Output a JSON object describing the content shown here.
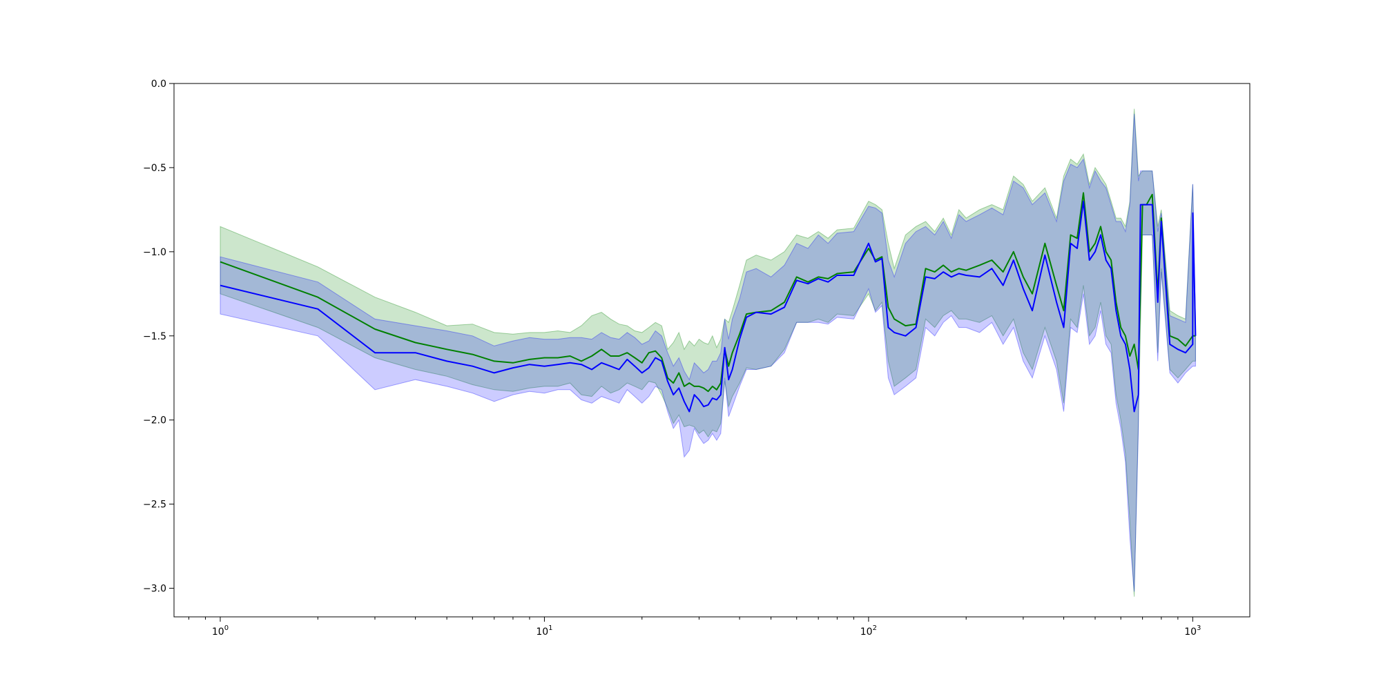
{
  "chart_data": {
    "type": "line",
    "title": "",
    "xlabel": "",
    "ylabel": "",
    "x_scale": "log",
    "xlim": [
      0.72,
      1500
    ],
    "ylim": [
      -3.17,
      0.0
    ],
    "x_ticks": [
      {
        "value": 1,
        "base": "10",
        "exp": "0"
      },
      {
        "value": 10,
        "base": "10",
        "exp": "1"
      },
      {
        "value": 100,
        "base": "10",
        "exp": "2"
      },
      {
        "value": 1000,
        "base": "10",
        "exp": "3"
      }
    ],
    "y_ticks": [
      {
        "value": 0.0,
        "label": "0.0"
      },
      {
        "value": -0.5,
        "label": "−0.5"
      },
      {
        "value": -1.0,
        "label": "−1.0"
      },
      {
        "value": -1.5,
        "label": "−1.5"
      },
      {
        "value": -2.0,
        "label": "−2.0"
      },
      {
        "value": -2.5,
        "label": "−2.5"
      },
      {
        "value": -3.0,
        "label": "−3.0"
      }
    ],
    "grid": false,
    "legend": "none",
    "series": [
      {
        "color": "#008000",
        "band_color": "#008000",
        "x": [
          1,
          2,
          3,
          4,
          5,
          6,
          7,
          8,
          9,
          10,
          11,
          12,
          13,
          14,
          15,
          16,
          17,
          18,
          19,
          20,
          21,
          22,
          23,
          24,
          25,
          26,
          27,
          28,
          29,
          30,
          31,
          32,
          33,
          34,
          35,
          36,
          37,
          38,
          40,
          42,
          45,
          50,
          55,
          60,
          65,
          70,
          75,
          80,
          90,
          100,
          105,
          110,
          115,
          120,
          130,
          140,
          150,
          160,
          170,
          180,
          190,
          200,
          220,
          240,
          260,
          280,
          300,
          320,
          350,
          380,
          400,
          420,
          440,
          460,
          480,
          500,
          520,
          540,
          560,
          580,
          600,
          620,
          640,
          660,
          680,
          700,
          720,
          750,
          780,
          800,
          850,
          900,
          950,
          1000,
          1020
        ],
        "y": [
          -1.06,
          -1.27,
          -1.46,
          -1.54,
          -1.58,
          -1.61,
          -1.65,
          -1.66,
          -1.64,
          -1.63,
          -1.63,
          -1.62,
          -1.65,
          -1.62,
          -1.58,
          -1.62,
          -1.62,
          -1.6,
          -1.63,
          -1.66,
          -1.6,
          -1.59,
          -1.63,
          -1.75,
          -1.78,
          -1.72,
          -1.8,
          -1.78,
          -1.8,
          -1.8,
          -1.81,
          -1.83,
          -1.8,
          -1.82,
          -1.78,
          -1.58,
          -1.68,
          -1.6,
          -1.49,
          -1.37,
          -1.36,
          -1.35,
          -1.3,
          -1.15,
          -1.18,
          -1.15,
          -1.16,
          -1.13,
          -1.12,
          -0.98,
          -1.05,
          -1.03,
          -1.33,
          -1.4,
          -1.44,
          -1.43,
          -1.1,
          -1.12,
          -1.08,
          -1.12,
          -1.1,
          -1.11,
          -1.08,
          -1.05,
          -1.12,
          -1.0,
          -1.15,
          -1.25,
          -0.95,
          -1.2,
          -1.35,
          -0.9,
          -0.92,
          -0.65,
          -1.0,
          -0.95,
          -0.85,
          -1.0,
          -1.05,
          -1.3,
          -1.45,
          -1.5,
          -1.62,
          -1.55,
          -1.7,
          -0.72,
          -0.72,
          -0.66,
          -1.25,
          -0.8,
          -1.5,
          -1.52,
          -1.56,
          -1.5,
          -1.5
        ],
        "upper": [
          -0.85,
          -1.09,
          -1.27,
          -1.36,
          -1.44,
          -1.43,
          -1.48,
          -1.49,
          -1.48,
          -1.48,
          -1.47,
          -1.48,
          -1.44,
          -1.38,
          -1.36,
          -1.4,
          -1.43,
          -1.44,
          -1.47,
          -1.48,
          -1.45,
          -1.42,
          -1.44,
          -1.58,
          -1.54,
          -1.48,
          -1.58,
          -1.53,
          -1.56,
          -1.52,
          -1.54,
          -1.55,
          -1.5,
          -1.57,
          -1.52,
          -1.4,
          -1.42,
          -1.35,
          -1.2,
          -1.05,
          -1.02,
          -1.05,
          -1.0,
          -0.9,
          -0.92,
          -0.88,
          -0.92,
          -0.87,
          -0.86,
          -0.7,
          -0.72,
          -0.75,
          -0.95,
          -1.1,
          -0.9,
          -0.85,
          -0.82,
          -0.88,
          -0.8,
          -0.9,
          -0.75,
          -0.8,
          -0.75,
          -0.72,
          -0.75,
          -0.55,
          -0.6,
          -0.7,
          -0.62,
          -0.8,
          -0.55,
          -0.45,
          -0.48,
          -0.42,
          -0.6,
          -0.5,
          -0.55,
          -0.6,
          -0.7,
          -0.8,
          -0.8,
          -0.85,
          -0.7,
          -0.15,
          -0.55,
          -0.52,
          -0.52,
          -0.52,
          -0.85,
          -0.75,
          -1.35,
          -1.38,
          -1.4,
          -0.6,
          -1.4
        ],
        "lower": [
          -1.25,
          -1.45,
          -1.63,
          -1.7,
          -1.74,
          -1.79,
          -1.82,
          -1.83,
          -1.81,
          -1.8,
          -1.8,
          -1.78,
          -1.85,
          -1.86,
          -1.8,
          -1.84,
          -1.82,
          -1.78,
          -1.8,
          -1.82,
          -1.77,
          -1.78,
          -1.85,
          -1.93,
          -2.02,
          -1.97,
          -2.04,
          -2.03,
          -2.04,
          -2.08,
          -2.06,
          -2.1,
          -2.06,
          -2.07,
          -2.02,
          -1.77,
          -1.92,
          -1.86,
          -1.78,
          -1.69,
          -1.7,
          -1.68,
          -1.58,
          -1.42,
          -1.42,
          -1.4,
          -1.42,
          -1.37,
          -1.38,
          -1.25,
          -1.35,
          -1.3,
          -1.65,
          -1.8,
          -1.75,
          -1.7,
          -1.4,
          -1.45,
          -1.38,
          -1.35,
          -1.4,
          -1.4,
          -1.42,
          -1.38,
          -1.5,
          -1.4,
          -1.6,
          -1.7,
          -1.45,
          -1.65,
          -1.9,
          -1.4,
          -1.45,
          -1.2,
          -1.5,
          -1.45,
          -1.3,
          -1.5,
          -1.55,
          -1.85,
          -2.0,
          -2.2,
          -2.6,
          -3.05,
          -2.0,
          -0.9,
          -0.9,
          -0.9,
          -1.6,
          -1.1,
          -1.7,
          -1.75,
          -1.7,
          -1.65,
          -1.65
        ]
      },
      {
        "color": "#0000ff",
        "band_color": "#0000ff",
        "x": [
          1,
          2,
          3,
          4,
          5,
          6,
          7,
          8,
          9,
          10,
          11,
          12,
          13,
          14,
          15,
          16,
          17,
          18,
          19,
          20,
          21,
          22,
          23,
          24,
          25,
          26,
          27,
          28,
          29,
          30,
          31,
          32,
          33,
          34,
          35,
          36,
          37,
          38,
          40,
          42,
          45,
          50,
          55,
          60,
          65,
          70,
          75,
          80,
          90,
          100,
          105,
          110,
          115,
          120,
          130,
          140,
          150,
          160,
          170,
          180,
          190,
          200,
          220,
          240,
          260,
          280,
          300,
          320,
          350,
          380,
          400,
          420,
          440,
          460,
          480,
          500,
          520,
          540,
          560,
          580,
          600,
          620,
          640,
          660,
          680,
          690,
          720,
          750,
          780,
          800,
          850,
          900,
          950,
          1000,
          1001,
          1020
        ],
        "y": [
          -1.2,
          -1.34,
          -1.6,
          -1.6,
          -1.65,
          -1.68,
          -1.72,
          -1.69,
          -1.67,
          -1.68,
          -1.67,
          -1.66,
          -1.67,
          -1.7,
          -1.66,
          -1.68,
          -1.7,
          -1.64,
          -1.68,
          -1.72,
          -1.69,
          -1.63,
          -1.65,
          -1.77,
          -1.85,
          -1.81,
          -1.89,
          -1.95,
          -1.85,
          -1.88,
          -1.92,
          -1.91,
          -1.87,
          -1.88,
          -1.85,
          -1.57,
          -1.76,
          -1.7,
          -1.52,
          -1.39,
          -1.36,
          -1.37,
          -1.33,
          -1.17,
          -1.19,
          -1.16,
          -1.18,
          -1.14,
          -1.14,
          -0.95,
          -1.06,
          -1.04,
          -1.45,
          -1.48,
          -1.5,
          -1.45,
          -1.15,
          -1.16,
          -1.12,
          -1.15,
          -1.13,
          -1.14,
          -1.15,
          -1.1,
          -1.2,
          -1.05,
          -1.22,
          -1.35,
          -1.02,
          -1.3,
          -1.45,
          -0.95,
          -0.98,
          -0.7,
          -1.05,
          -1.0,
          -0.9,
          -1.05,
          -1.1,
          -1.35,
          -1.5,
          -1.55,
          -1.7,
          -1.95,
          -1.85,
          -0.72,
          -0.72,
          -0.72,
          -1.3,
          -0.82,
          -1.55,
          -1.58,
          -1.6,
          -1.55,
          -0.77,
          -1.5
        ],
        "upper": [
          -1.03,
          -1.18,
          -1.4,
          -1.44,
          -1.47,
          -1.5,
          -1.56,
          -1.53,
          -1.51,
          -1.52,
          -1.52,
          -1.51,
          -1.51,
          -1.52,
          -1.48,
          -1.51,
          -1.52,
          -1.48,
          -1.51,
          -1.55,
          -1.53,
          -1.47,
          -1.5,
          -1.6,
          -1.68,
          -1.63,
          -1.71,
          -1.76,
          -1.66,
          -1.69,
          -1.72,
          -1.7,
          -1.65,
          -1.65,
          -1.6,
          -1.4,
          -1.52,
          -1.4,
          -1.28,
          -1.12,
          -1.1,
          -1.15,
          -1.08,
          -0.95,
          -0.98,
          -0.9,
          -0.95,
          -0.89,
          -0.88,
          -0.73,
          -0.74,
          -0.77,
          -1.05,
          -1.15,
          -0.95,
          -0.88,
          -0.85,
          -0.9,
          -0.82,
          -0.92,
          -0.78,
          -0.82,
          -0.78,
          -0.74,
          -0.78,
          -0.58,
          -0.62,
          -0.72,
          -0.65,
          -0.82,
          -0.58,
          -0.48,
          -0.5,
          -0.45,
          -0.62,
          -0.52,
          -0.58,
          -0.62,
          -0.72,
          -0.82,
          -0.82,
          -0.88,
          -0.72,
          -0.18,
          -0.58,
          -0.52,
          -0.52,
          -0.52,
          -0.88,
          -0.77,
          -1.38,
          -1.4,
          -1.42,
          -0.6,
          -0.6,
          -1.42
        ],
        "lower": [
          -1.37,
          -1.5,
          -1.82,
          -1.76,
          -1.8,
          -1.84,
          -1.89,
          -1.85,
          -1.83,
          -1.84,
          -1.82,
          -1.82,
          -1.88,
          -1.9,
          -1.86,
          -1.88,
          -1.9,
          -1.82,
          -1.86,
          -1.9,
          -1.86,
          -1.8,
          -1.82,
          -1.95,
          -2.05,
          -2.0,
          -2.22,
          -2.18,
          -2.05,
          -2.1,
          -2.14,
          -2.12,
          -2.08,
          -2.12,
          -2.08,
          -1.75,
          -1.98,
          -1.92,
          -1.8,
          -1.7,
          -1.7,
          -1.68,
          -1.6,
          -1.42,
          -1.42,
          -1.42,
          -1.43,
          -1.39,
          -1.4,
          -1.22,
          -1.36,
          -1.32,
          -1.75,
          -1.85,
          -1.8,
          -1.75,
          -1.45,
          -1.5,
          -1.42,
          -1.38,
          -1.45,
          -1.45,
          -1.48,
          -1.42,
          -1.55,
          -1.45,
          -1.65,
          -1.75,
          -1.5,
          -1.7,
          -1.95,
          -1.45,
          -1.48,
          -1.25,
          -1.55,
          -1.5,
          -1.35,
          -1.55,
          -1.6,
          -1.9,
          -2.05,
          -2.25,
          -2.7,
          -3.02,
          -2.05,
          -0.9,
          -0.9,
          -0.9,
          -1.65,
          -1.12,
          -1.72,
          -1.78,
          -1.72,
          -1.68,
          -1.68,
          -1.68
        ]
      }
    ]
  }
}
